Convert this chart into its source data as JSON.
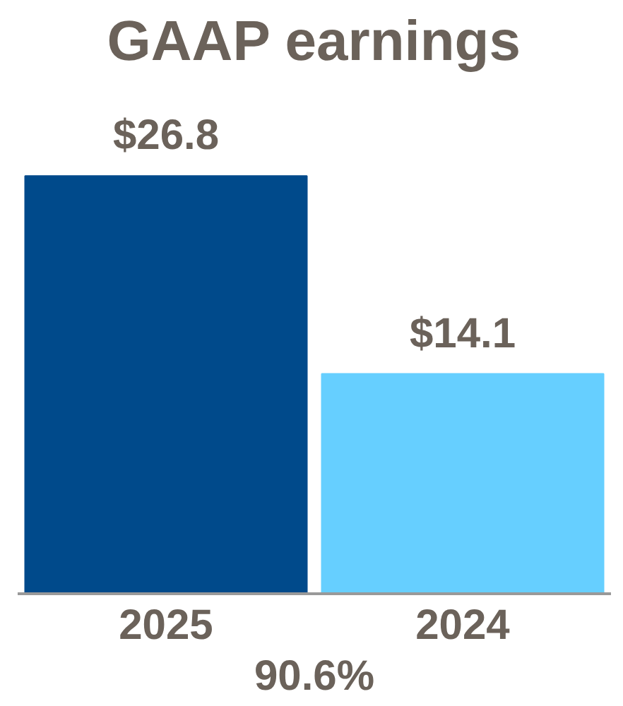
{
  "chart_data": {
    "type": "bar",
    "title": "GAAP earnings",
    "categories": [
      "2025",
      "2024"
    ],
    "values": [
      26.8,
      14.1
    ],
    "colors": [
      "#004a8b",
      "#66cfff"
    ],
    "value_labels": [
      "$26.8",
      "$14.1"
    ],
    "annotations": [
      "90.6%"
    ],
    "grid": false
  }
}
